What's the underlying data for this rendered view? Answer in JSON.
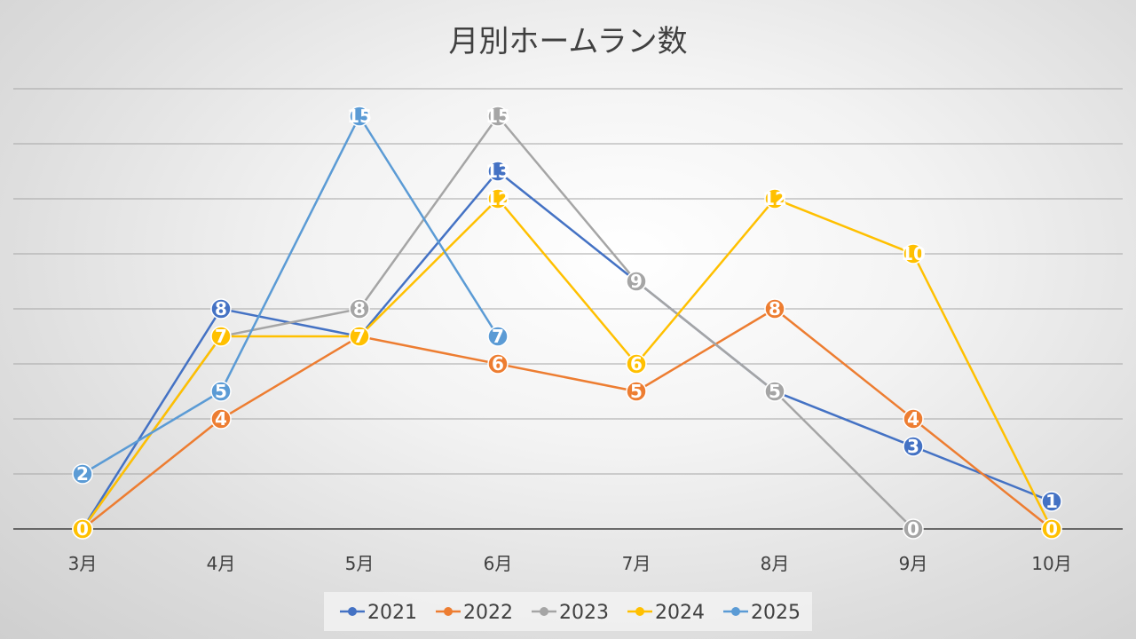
{
  "chart_data": {
    "type": "line",
    "title": "月別ホームラン数",
    "xlabel": "",
    "ylabel": "",
    "categories": [
      "3月",
      "4月",
      "5月",
      "6月",
      "7月",
      "8月",
      "9月",
      "10月"
    ],
    "ylim": [
      0,
      16
    ],
    "grid": true,
    "legend_position": "bottom",
    "series": [
      {
        "name": "2021",
        "color": "#4472c4",
        "values": [
          0,
          8,
          7,
          13,
          9,
          5,
          3,
          1
        ]
      },
      {
        "name": "2022",
        "color": "#ed7d31",
        "values": [
          0,
          4,
          7,
          6,
          5,
          8,
          4,
          0
        ]
      },
      {
        "name": "2023",
        "color": "#a5a5a5",
        "values": [
          0,
          7,
          8,
          15,
          9,
          5,
          0,
          null
        ]
      },
      {
        "name": "2024",
        "color": "#ffc000",
        "values": [
          0,
          7,
          7,
          12,
          6,
          12,
          10,
          0
        ]
      },
      {
        "name": "2025",
        "color": "#5b9bd5",
        "values": [
          2,
          5,
          15,
          7,
          null,
          null,
          null,
          null
        ]
      }
    ]
  }
}
